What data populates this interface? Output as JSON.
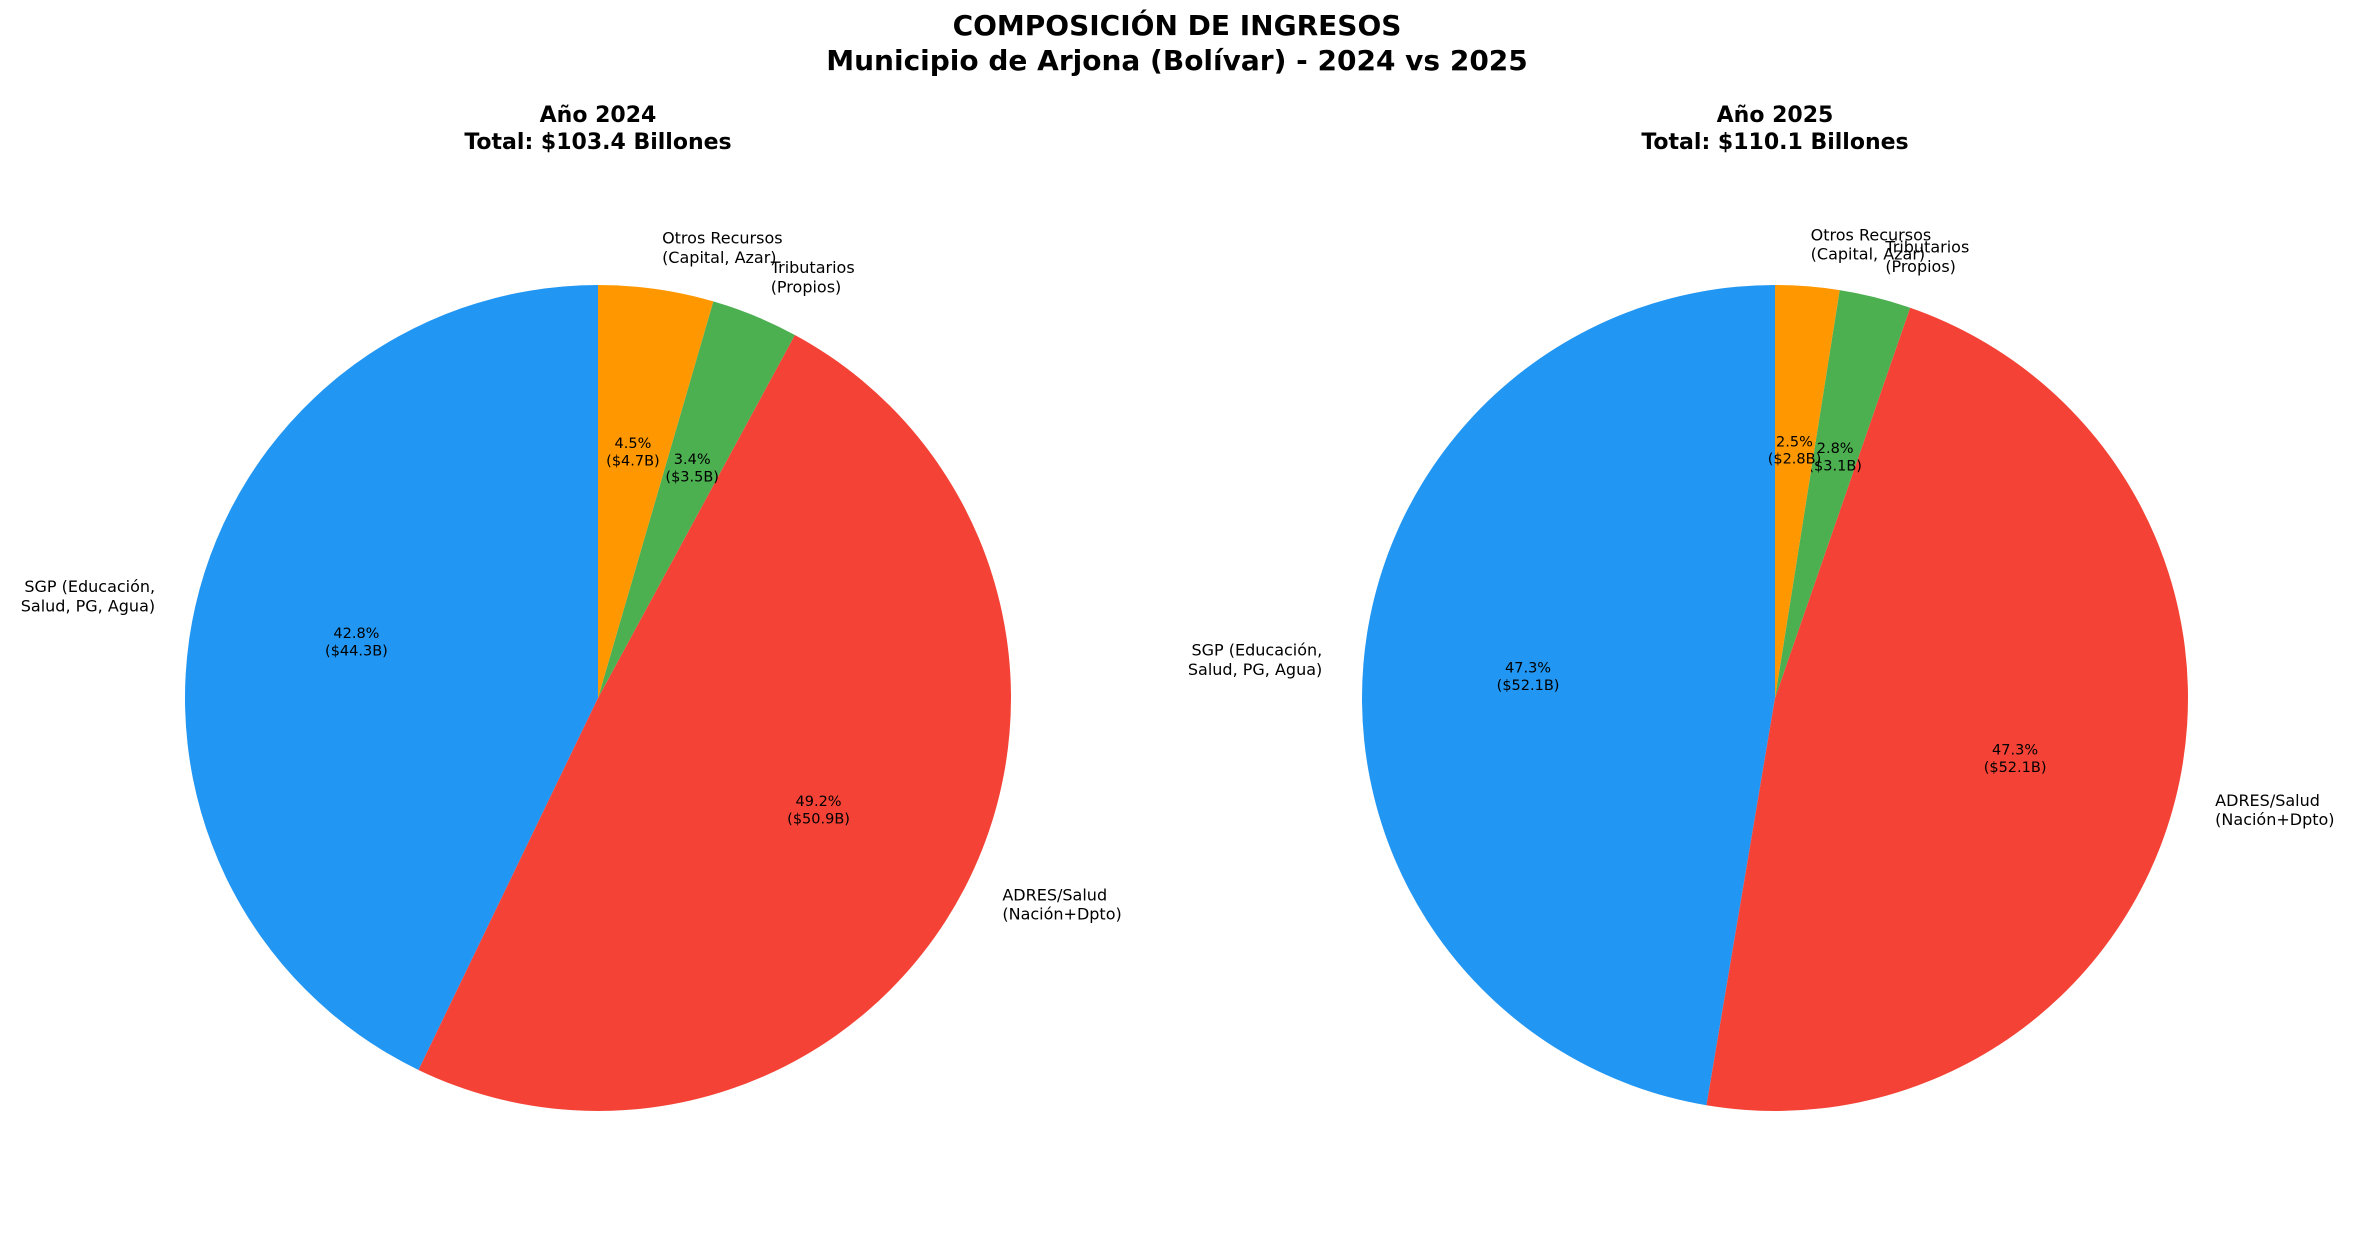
{
  "title": [
    "COMPOSICIÓN DE INGRESOS",
    "Municipio de Arjona (Bolívar) - 2024 vs 2025"
  ],
  "chart_data": [
    {
      "type": "pie",
      "title": "Año 2024",
      "subtitle": "Total: $103.4 Billones",
      "categories": [
        "SGP (Educación,\nSalud, PG, Agua)",
        "ADRES/Salud\n(Nación+Dpto)",
        "Tributarios\n(Propios)",
        "Otros Recursos\n(Capital, Azar)"
      ],
      "values": [
        42.8,
        49.2,
        3.4,
        4.5
      ],
      "value_labels": [
        "42.8%",
        "49.2%",
        "3.4%",
        "4.5%"
      ],
      "amounts": [
        44.3,
        50.9,
        3.5,
        4.7
      ],
      "amount_labels": [
        "($44.3B)",
        "($50.9B)",
        "($3.5B)",
        "($4.7B)"
      ],
      "colors": [
        "#2196f3",
        "#f44336",
        "#4caf50",
        "#ff9800"
      ]
    },
    {
      "type": "pie",
      "title": "Año 2025",
      "subtitle": "Total: $110.1 Billones",
      "categories": [
        "SGP (Educación,\nSalud, PG, Agua)",
        "ADRES/Salud\n(Nación+Dpto)",
        "Tributarios\n(Propios)",
        "Otros Recursos\n(Capital, Azar)"
      ],
      "values": [
        47.3,
        47.3,
        2.8,
        2.5
      ],
      "value_labels": [
        "47.3%",
        "47.3%",
        "2.8%",
        "2.5%"
      ],
      "amounts": [
        52.1,
        52.1,
        3.1,
        2.8
      ],
      "amount_labels": [
        "($52.1B)",
        "($52.1B)",
        "($3.1B)",
        "($2.8B)"
      ],
      "colors": [
        "#2196f3",
        "#f44336",
        "#4caf50",
        "#ff9800"
      ]
    }
  ]
}
